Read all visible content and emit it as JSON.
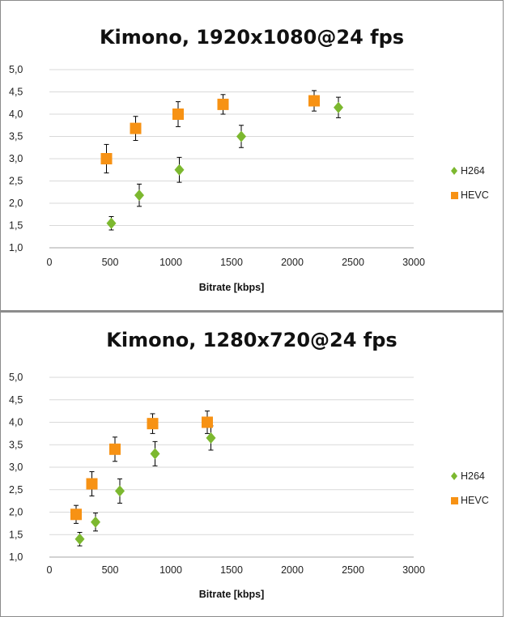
{
  "chart_data": [
    {
      "type": "scatter",
      "title": "Kimono, 1920x1080@24 fps",
      "xlabel": "Bitrate [kbps]",
      "ylabel": "",
      "xlim": [
        0,
        3000
      ],
      "ylim": [
        1.0,
        5.0
      ],
      "x_ticks": [
        "0",
        "500",
        "1000",
        "1500",
        "2000",
        "2500",
        "3000"
      ],
      "y_ticks": [
        "1,0",
        "1,5",
        "2,0",
        "2,5",
        "3,0",
        "3,5",
        "4,0",
        "4,5",
        "5,0"
      ],
      "grid": true,
      "legend_position": "right",
      "series": [
        {
          "name": "H264",
          "color": "#7cb82f",
          "marker": "diamond",
          "points": [
            {
              "x": 510,
              "y": 1.55,
              "err": 0.15
            },
            {
              "x": 740,
              "y": 2.18,
              "err": 0.25
            },
            {
              "x": 1070,
              "y": 2.75,
              "err": 0.28
            },
            {
              "x": 1580,
              "y": 3.5,
              "err": 0.25
            },
            {
              "x": 2380,
              "y": 4.15,
              "err": 0.23
            }
          ]
        },
        {
          "name": "HEVC",
          "color": "#f79214",
          "marker": "square",
          "points": [
            {
              "x": 470,
              "y": 3.0,
              "err": 0.32
            },
            {
              "x": 710,
              "y": 3.68,
              "err": 0.27
            },
            {
              "x": 1060,
              "y": 4.0,
              "err": 0.28
            },
            {
              "x": 1430,
              "y": 4.22,
              "err": 0.22
            },
            {
              "x": 2180,
              "y": 4.3,
              "err": 0.23
            }
          ]
        }
      ]
    },
    {
      "type": "scatter",
      "title": "Kimono, 1280x720@24 fps",
      "xlabel": "Bitrate [kbps]",
      "ylabel": "",
      "xlim": [
        0,
        3000
      ],
      "ylim": [
        1.0,
        5.0
      ],
      "x_ticks": [
        "0",
        "500",
        "1000",
        "1500",
        "2000",
        "2500",
        "3000"
      ],
      "y_ticks": [
        "1,0",
        "1,5",
        "2,0",
        "2,5",
        "3,0",
        "3,5",
        "4,0",
        "4,5",
        "5,0"
      ],
      "grid": true,
      "legend_position": "right",
      "series": [
        {
          "name": "H264",
          "color": "#7cb82f",
          "marker": "diamond",
          "points": [
            {
              "x": 250,
              "y": 1.4,
              "err": 0.15
            },
            {
              "x": 380,
              "y": 1.78,
              "err": 0.2
            },
            {
              "x": 580,
              "y": 2.47,
              "err": 0.27
            },
            {
              "x": 870,
              "y": 3.3,
              "err": 0.27
            },
            {
              "x": 1330,
              "y": 3.65,
              "err": 0.27
            }
          ]
        },
        {
          "name": "HEVC",
          "color": "#f79214",
          "marker": "square",
          "points": [
            {
              "x": 220,
              "y": 1.95,
              "err": 0.2
            },
            {
              "x": 350,
              "y": 2.63,
              "err": 0.27
            },
            {
              "x": 540,
              "y": 3.4,
              "err": 0.27
            },
            {
              "x": 850,
              "y": 3.97,
              "err": 0.22
            },
            {
              "x": 1300,
              "y": 4.0,
              "err": 0.25
            }
          ]
        }
      ]
    }
  ]
}
